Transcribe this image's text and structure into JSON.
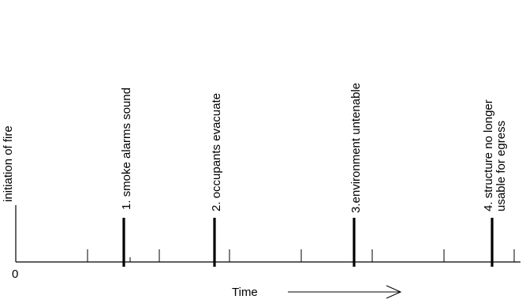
{
  "timeline": {
    "origin_label": "0",
    "axis_label": "Time",
    "start_event": "initiation of fire",
    "events": [
      {
        "lines": [
          "1. smoke alarms sound"
        ]
      },
      {
        "lines": [
          "2. occupants evacuate"
        ]
      },
      {
        "lines": [
          "3.environment untenable"
        ]
      },
      {
        "lines": [
          "4. structure no longer",
          "usable for egress"
        ]
      }
    ]
  }
}
